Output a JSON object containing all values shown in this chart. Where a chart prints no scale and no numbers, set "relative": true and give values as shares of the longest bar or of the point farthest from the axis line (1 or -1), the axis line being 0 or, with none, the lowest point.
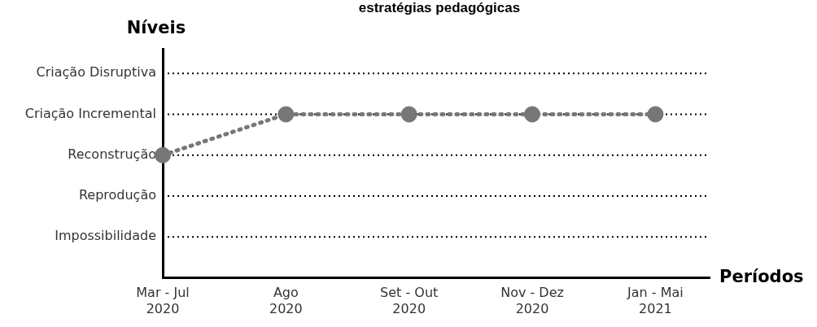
{
  "chart_data": {
    "type": "line",
    "title": "estratégias pedagógicas",
    "xlabel": "Períodos",
    "ylabel": "Níveis",
    "relative": true,
    "categories": [
      "Mar - Jul 2020",
      "Ago 2020",
      "Set - Out 2020",
      "Nov - Dez 2020",
      "Jan - Mai 2021"
    ],
    "series": [
      {
        "color": "#777777",
        "values": [
          0.75,
          1,
          1,
          1,
          1
        ]
      }
    ],
    "ref_lines": [
      {
        "axis": "y",
        "value": 0.25,
        "label": "Impossibilidade",
        "color": "#000000",
        "line_style": "dotted"
      },
      {
        "axis": "y",
        "value": 0.5,
        "label": "Reprodução",
        "color": "#000000",
        "line_style": "dotted"
      },
      {
        "axis": "y",
        "value": 0.75,
        "label": "Reconstrução",
        "color": "#000000",
        "line_style": "dotted"
      },
      {
        "axis": "y",
        "value": 1,
        "label": "Criação Incremental",
        "color": "#000000",
        "line_style": "dotted"
      },
      {
        "axis": "y",
        "value": 1.25,
        "label": "Criação Disruptiva",
        "color": "#000000",
        "line_style": "dotted"
      }
    ],
    "marker": "circle",
    "line_style": "dotted"
  }
}
